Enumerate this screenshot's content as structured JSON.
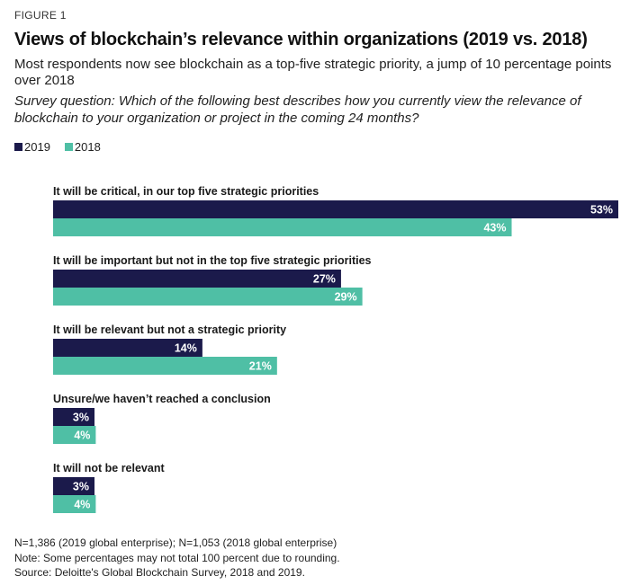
{
  "figure_label": "FIGURE 1",
  "title": "Views of blockchain’s relevance within organizations (2019 vs. 2018)",
  "subtitle": "Most respondents now see blockchain as a top-five strategic priority, a jump of 10 percentage points over 2018",
  "question": "Survey question: Which of the following best describes how you currently view the relevance of blockchain to your organization or project in the coming 24 months?",
  "colors": {
    "2019": "#1b1a4b",
    "2018": "#4fbfa5"
  },
  "chart_data": {
    "type": "bar",
    "orientation": "horizontal",
    "categories": [
      "It will be critical, in our top five strategic priorities",
      "It will be important but not in the top five strategic priorities",
      "It will be relevant but not a strategic priority",
      "Unsure/we haven’t reached a conclusion",
      "It will not be relevant"
    ],
    "series": [
      {
        "name": "2019",
        "values": [
          53,
          27,
          14,
          3,
          3
        ],
        "labels": [
          "53%",
          "27%",
          "14%",
          "3%",
          "3%"
        ]
      },
      {
        "name": "2018",
        "values": [
          43,
          29,
          21,
          4,
          4
        ],
        "labels": [
          "43%",
          "29%",
          "21%",
          "4%",
          "4%"
        ]
      }
    ],
    "value_unit": "%",
    "xlim": [
      0,
      53
    ],
    "legend_position": "top-left",
    "grid": false
  },
  "footer": {
    "sample": "N=1,386 (2019 global enterprise); N=1,053 (2018 global enterprise)",
    "note": "Note: Some percentages may not total 100 percent due to rounding.",
    "source": "Source: Deloitte's Global Blockchain Survey, 2018 and 2019."
  }
}
